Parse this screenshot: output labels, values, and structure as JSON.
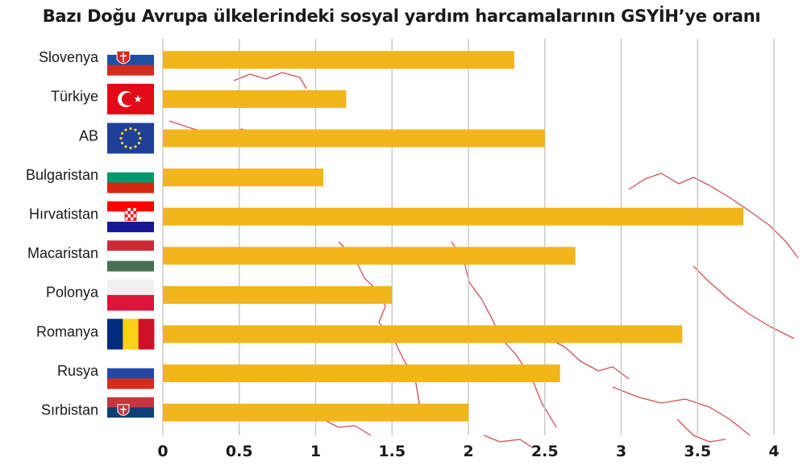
{
  "chart_data": {
    "type": "bar",
    "orientation": "horizontal",
    "title": "Bazı Doğu Avrupa ülkelerindeki sosyal yardım harcamalarının GSYİH’ye oranı",
    "xlabel": "",
    "ylabel": "",
    "categories": [
      "Slovenya",
      "Türkiye",
      "AB",
      "Bulgaristan",
      "Hırvatistan",
      "Macaristan",
      "Polonya",
      "Romanya",
      "Rusya",
      "Sırbistan"
    ],
    "values": [
      2.3,
      1.2,
      2.5,
      1.05,
      3.8,
      2.7,
      1.5,
      3.4,
      2.6,
      2.0
    ],
    "xlim": [
      0,
      4
    ],
    "ticks": [
      0,
      0.5,
      1,
      1.5,
      2,
      2.5,
      3,
      3.5,
      4
    ],
    "tick_labels": [
      "0",
      "0.5",
      "1",
      "1.5",
      "2",
      "2.5",
      "3",
      "3.5",
      "4"
    ],
    "grid": "vertical",
    "bar_color": "#f2b51c",
    "grid_color": "#c8c8c8",
    "map_line_color": "#c8323c",
    "flag_icons": [
      "slovakia-flag-icon",
      "turkey-flag-icon",
      "eu-flag-icon",
      "bulgaria-flag-icon",
      "croatia-flag-icon",
      "hungary-flag-icon",
      "poland-flag-icon",
      "romania-flag-icon",
      "russia-flag-icon",
      "serbia-flag-icon"
    ]
  }
}
